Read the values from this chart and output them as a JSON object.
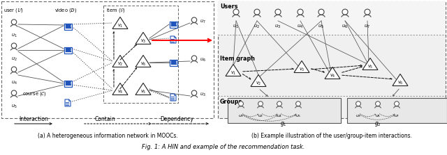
{
  "fig_width": 6.4,
  "fig_height": 2.23,
  "dpi": 100,
  "bg_color": "#ffffff",
  "caption": "Fig. 1: A HIN and example of the recommendation task.",
  "subcap_a": "(a) A heterogeneous information network in MOOCs.",
  "subcap_b": "(b) Example illustration of the user/group-item interactions.",
  "label_interaction": "Interaction",
  "label_contain": "Contain",
  "label_dependency": "Dependency",
  "blue": "#2255bb",
  "dark": "#222222",
  "grey": "#666666",
  "light_grey": "#dddddd",
  "panel_bg_b": "#eeeeee"
}
